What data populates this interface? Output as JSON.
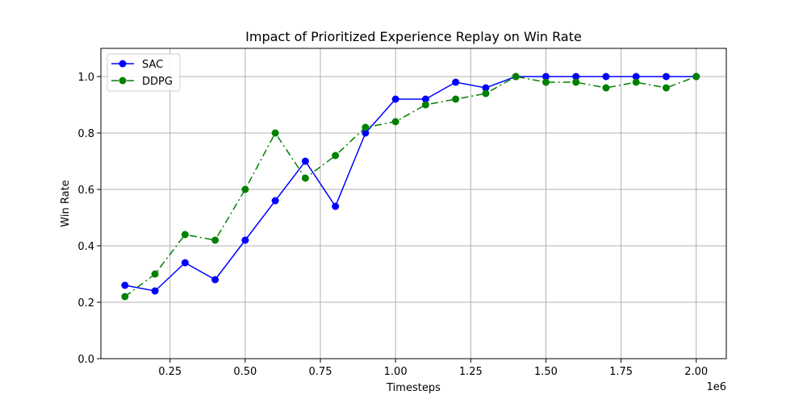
{
  "chart_data": {
    "type": "line",
    "title": "Impact of Prioritized Experience Replay on Win Rate",
    "xlabel": "Timesteps",
    "ylabel": "Win Rate",
    "x_offset_label": "1e6",
    "xlim": [
      0.02,
      2.1
    ],
    "ylim": [
      0.0,
      1.1
    ],
    "x_ticks": [
      0.25,
      0.5,
      0.75,
      1.0,
      1.25,
      1.5,
      1.75,
      2.0
    ],
    "x_tick_labels": [
      "0.25",
      "0.50",
      "0.75",
      "1.00",
      "1.25",
      "1.50",
      "1.75",
      "2.00"
    ],
    "y_ticks": [
      0.0,
      0.2,
      0.4,
      0.6,
      0.8,
      1.0
    ],
    "y_tick_labels": [
      "0.0",
      "0.2",
      "0.4",
      "0.6",
      "0.8",
      "1.0"
    ],
    "grid": true,
    "legend_position": "top-left",
    "x": [
      0.1,
      0.2,
      0.3,
      0.4,
      0.5,
      0.6,
      0.7,
      0.8,
      0.9,
      1.0,
      1.1,
      1.2,
      1.3,
      1.4,
      1.5,
      1.6,
      1.7,
      1.8,
      1.9,
      2.0
    ],
    "series": [
      {
        "name": "SAC",
        "color": "#0000ff",
        "linestyle": "solid",
        "marker": "circle",
        "values": [
          0.26,
          0.24,
          0.34,
          0.28,
          0.42,
          0.56,
          0.7,
          0.54,
          0.8,
          0.92,
          0.92,
          0.98,
          0.96,
          1.0,
          1.0,
          1.0,
          1.0,
          1.0,
          1.0,
          1.0
        ]
      },
      {
        "name": "DDPG",
        "color": "#008000",
        "linestyle": "dashdot",
        "marker": "circle",
        "values": [
          0.22,
          0.3,
          0.44,
          0.42,
          0.6,
          0.8,
          0.64,
          0.72,
          0.82,
          0.84,
          0.9,
          0.92,
          0.94,
          1.0,
          0.98,
          0.98,
          0.96,
          0.98,
          0.96,
          1.0
        ]
      }
    ]
  }
}
